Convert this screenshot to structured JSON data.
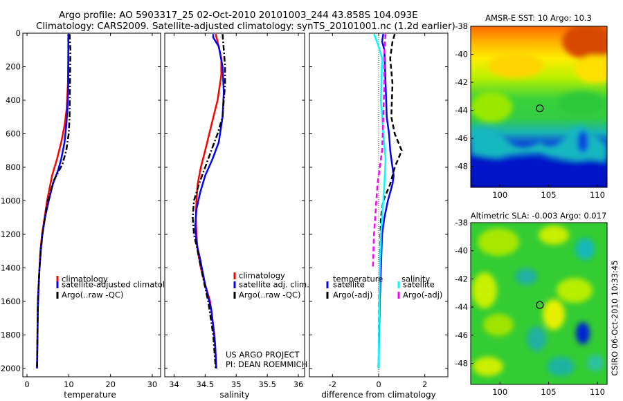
{
  "header": {
    "title_line1": "Argo profile: AO 5903317_25 02-Oct-2010 20101003_244 43.858S 104.093E",
    "title_line2": "Climatology: CARS2009. Satellite-adjusted climatology: synTS_20101001.nc (1.2d earlier)"
  },
  "colors": {
    "climatology": "#ff0000",
    "satellite": "#0000ff",
    "argo": "#000000",
    "salinity_satellite": "#00ffff",
    "salinity_argo": "#ff00ff"
  },
  "credit": {
    "line1": "US ARGO PROJECT",
    "line2": "PI: DEAN ROEMMICH"
  },
  "stamp": "CSIRO 06-Oct-2010 10:33:45",
  "chart_data": [
    {
      "id": "temperature",
      "type": "line",
      "title": "",
      "xlabel": "temperature",
      "ylabel": "",
      "xlim": [
        -1,
        32
      ],
      "ylim": [
        2050,
        0
      ],
      "xticks": [
        0,
        10,
        20,
        30
      ],
      "yticks": [
        0,
        200,
        400,
        600,
        800,
        1000,
        1200,
        1400,
        1600,
        1800,
        2000
      ],
      "legend": [
        "climatology",
        "satellite-adjusted climatology",
        "Argo(..raw -QC)"
      ],
      "series": [
        {
          "name": "climatology",
          "style": "solid",
          "color": "#ff0000",
          "x": [
            9.9,
            9.9,
            9.8,
            9.5,
            9.0,
            8.2,
            7.2,
            6.0,
            4.8,
            4.2,
            3.6,
            3.2,
            3.0,
            2.8,
            2.6,
            2.5,
            2.4
          ],
          "y": [
            5,
            100,
            300,
            450,
            550,
            650,
            750,
            850,
            1000,
            1100,
            1200,
            1300,
            1400,
            1500,
            1600,
            1800,
            2000
          ]
        },
        {
          "name": "satellite-adjusted climatology",
          "style": "solid",
          "color": "#0000ff",
          "x": [
            9.9,
            9.9,
            9.9,
            9.7,
            9.4,
            9.0,
            8.2,
            7.4,
            6.2,
            5.2,
            4.3,
            3.7,
            3.3,
            3.0,
            2.8,
            2.6,
            2.5,
            2.4
          ],
          "y": [
            5,
            100,
            300,
            450,
            550,
            650,
            750,
            820,
            900,
            1000,
            1100,
            1200,
            1300,
            1400,
            1500,
            1650,
            1850,
            2000
          ]
        },
        {
          "name": "Argo(..raw -QC)",
          "style": "dashdot",
          "color": "#000000",
          "x": [
            10.2,
            10.4,
            10.3,
            10.2,
            10.0,
            9.4,
            8.5,
            6.4,
            5.0,
            4.3,
            3.7,
            3.3,
            3.0,
            2.8,
            2.6,
            2.5,
            2.4
          ],
          "y": [
            5,
            100,
            300,
            500,
            600,
            700,
            780,
            880,
            1000,
            1100,
            1200,
            1300,
            1400,
            1500,
            1600,
            1800,
            2000
          ]
        }
      ]
    },
    {
      "id": "salinity",
      "type": "line",
      "xlabel": "salinity",
      "ylabel": "",
      "xlim": [
        33.85,
        36.1
      ],
      "ylim": [
        2050,
        0
      ],
      "xticks": [
        34,
        34.5,
        35,
        35.5,
        36
      ],
      "legend": [
        "climatology",
        "satellite adj. clim.",
        "Argo(..raw -QC)"
      ],
      "series": [
        {
          "name": "climatology",
          "style": "solid",
          "color": "#ff0000",
          "x": [
            34.67,
            34.7,
            34.76,
            34.76,
            34.7,
            34.6,
            34.5,
            34.43,
            34.38,
            34.36,
            34.35,
            34.36,
            34.38,
            34.43,
            34.5,
            34.58,
            34.65,
            34.68
          ],
          "y": [
            5,
            50,
            150,
            250,
            400,
            550,
            700,
            800,
            900,
            1000,
            1100,
            1200,
            1300,
            1400,
            1500,
            1600,
            1800,
            2000
          ]
        },
        {
          "name": "satellite adj. clim.",
          "style": "solid",
          "color": "#0000ff",
          "x": [
            34.63,
            34.63,
            34.72,
            34.78,
            34.8,
            34.78,
            34.72,
            34.62,
            34.5,
            34.42,
            34.36,
            34.34,
            34.36,
            34.42,
            34.5,
            34.6,
            34.66,
            34.68
          ],
          "y": [
            5,
            25,
            80,
            200,
            350,
            500,
            650,
            750,
            850,
            950,
            1050,
            1150,
            1250,
            1350,
            1500,
            1650,
            1850,
            2000
          ]
        },
        {
          "name": "Argo(..raw -QC)",
          "style": "dashdot",
          "color": "#000000",
          "x": [
            34.78,
            34.8,
            34.82,
            34.82,
            34.8,
            34.78,
            34.7,
            34.6,
            34.5,
            34.4,
            34.32,
            34.3,
            34.32,
            34.38,
            34.46,
            34.55,
            34.63,
            34.67
          ],
          "y": [
            5,
            100,
            200,
            300,
            400,
            500,
            600,
            700,
            800,
            900,
            1000,
            1100,
            1200,
            1300,
            1450,
            1600,
            1800,
            2000
          ]
        }
      ]
    },
    {
      "id": "difference",
      "type": "line",
      "xlabel": "difference from climatology",
      "ylabel": "",
      "xlim": [
        -3,
        3
      ],
      "ylim": [
        2050,
        0
      ],
      "xticks": [
        -2,
        0,
        2
      ],
      "legend_groups": [
        "temperature",
        "salinity"
      ],
      "legend": [
        "satellite",
        "Argo(-adj)",
        "satellite",
        "Argo(-adj)"
      ],
      "series": [
        {
          "name": "temperature satellite",
          "style": "solid",
          "color": "#0000ff",
          "x": [
            0.2,
            0.15,
            0.25,
            0.3,
            0.35,
            0.45,
            0.5,
            0.55,
            0.6,
            0.65,
            0.6,
            0.4,
            0.25,
            0.15,
            0.1,
            0.05,
            0.02,
            0.0
          ],
          "y": [
            5,
            50,
            100,
            300,
            500,
            600,
            700,
            750,
            800,
            850,
            900,
            1000,
            1100,
            1200,
            1400,
            1600,
            1800,
            2000
          ]
        },
        {
          "name": "temperature Argo(-adj)",
          "style": "dashed",
          "color": "#000000",
          "x": [
            0.7,
            0.6,
            0.5,
            0.6,
            0.55,
            0.7,
            1.0,
            0.7,
            0.5,
            0.2,
            0.1,
            0.08,
            0.05,
            0.02,
            0.0
          ],
          "y": [
            5,
            50,
            150,
            300,
            500,
            600,
            700,
            800,
            900,
            1000,
            1100,
            1200,
            1400,
            1600,
            2000
          ]
        },
        {
          "name": "salinity satellite",
          "style": "solid",
          "color": "#00ffff",
          "x": [
            -0.2,
            -0.05,
            0.15,
            0.1,
            0.2,
            0.3,
            0.25,
            0.2,
            0.15,
            0.1,
            0.05,
            0.02,
            0.0
          ],
          "y": [
            5,
            60,
            150,
            400,
            600,
            750,
            900,
            1000,
            1100,
            1200,
            1400,
            1700,
            2000
          ]
        },
        {
          "name": "salinity Argo(-adj)",
          "style": "dashed",
          "color": "#ff00ff",
          "x": [
            0.3,
            0.25,
            0.25,
            0.2,
            0.15,
            0.05,
            -0.05,
            -0.1,
            -0.15,
            -0.2,
            -0.25
          ],
          "y": [
            5,
            100,
            300,
            500,
            700,
            800,
            900,
            1000,
            1100,
            1200,
            1400
          ]
        }
      ]
    },
    {
      "id": "sst_map",
      "type": "heatmap",
      "title": "AMSR-E SST: 10 Argo: 10.3",
      "xlim": [
        97,
        111
      ],
      "ylim": [
        -49.5,
        -38
      ],
      "xticks": [
        100,
        105,
        110
      ],
      "yticks": [
        -38,
        -40,
        -42,
        -44,
        -46,
        -48
      ],
      "marker": {
        "lon": 104.093,
        "lat": -43.858
      }
    },
    {
      "id": "sla_map",
      "type": "heatmap",
      "title": "Altimetric SLA: -0.003 Argo: 0.017",
      "xlim": [
        97,
        111
      ],
      "ylim": [
        -49.5,
        -38
      ],
      "xticks": [
        100,
        105,
        110
      ],
      "yticks": [
        -38,
        -40,
        -42,
        -44,
        -46,
        -48
      ],
      "marker": {
        "lon": 104.093,
        "lat": -43.858
      }
    }
  ]
}
